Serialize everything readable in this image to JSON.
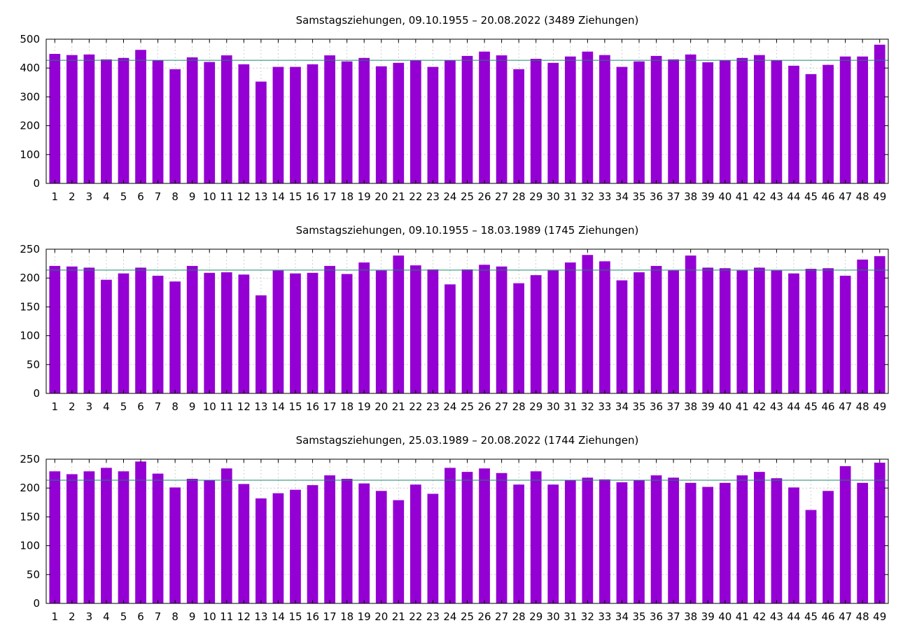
{
  "chart_data": [
    {
      "type": "bar",
      "title": "Samstagsziehungen, 09.10.1955 – 20.08.2022 (3489 Ziehungen)",
      "xlabel": "",
      "ylabel": "",
      "ylim": [
        0,
        500
      ],
      "yticks": [
        0,
        100,
        200,
        300,
        400,
        500
      ],
      "grid": true,
      "bar_color": "#9400d3",
      "reference_line": {
        "value": 427,
        "color": "#1a8a6e"
      },
      "categories": [
        "1",
        "2",
        "3",
        "4",
        "5",
        "6",
        "7",
        "8",
        "9",
        "10",
        "11",
        "12",
        "13",
        "14",
        "15",
        "16",
        "17",
        "18",
        "19",
        "20",
        "21",
        "22",
        "23",
        "24",
        "25",
        "26",
        "27",
        "28",
        "29",
        "30",
        "31",
        "32",
        "33",
        "34",
        "35",
        "36",
        "37",
        "38",
        "39",
        "40",
        "41",
        "42",
        "43",
        "44",
        "45",
        "46",
        "47",
        "48",
        "49"
      ],
      "values": [
        449,
        445,
        447,
        430,
        435,
        463,
        427,
        396,
        437,
        421,
        444,
        413,
        353,
        404,
        404,
        413,
        444,
        423,
        435,
        406,
        418,
        427,
        404,
        427,
        442,
        457,
        444,
        396,
        432,
        418,
        440,
        457,
        445,
        404,
        423,
        442,
        430,
        447,
        420,
        427,
        435,
        445,
        427,
        408,
        379,
        411,
        440,
        440,
        481
      ]
    },
    {
      "type": "bar",
      "title": "Samstagsziehungen, 09.10.1955 – 18.03.1989 (1745 Ziehungen)",
      "xlabel": "",
      "ylabel": "",
      "ylim": [
        0,
        250
      ],
      "yticks": [
        0,
        50,
        100,
        150,
        200,
        250
      ],
      "grid": true,
      "bar_color": "#9400d3",
      "reference_line": {
        "value": 213.7,
        "color": "#1a8a6e"
      },
      "categories": [
        "1",
        "2",
        "3",
        "4",
        "5",
        "6",
        "7",
        "8",
        "9",
        "10",
        "11",
        "12",
        "13",
        "14",
        "15",
        "16",
        "17",
        "18",
        "19",
        "20",
        "21",
        "22",
        "23",
        "24",
        "25",
        "26",
        "27",
        "28",
        "29",
        "30",
        "31",
        "32",
        "33",
        "34",
        "35",
        "36",
        "37",
        "38",
        "39",
        "40",
        "41",
        "42",
        "43",
        "44",
        "45",
        "46",
        "47",
        "48",
        "49"
      ],
      "values": [
        221,
        220,
        218,
        197,
        208,
        218,
        204,
        194,
        221,
        209,
        210,
        206,
        170,
        213,
        208,
        209,
        221,
        207,
        227,
        213,
        239,
        222,
        215,
        189,
        215,
        223,
        220,
        191,
        205,
        213,
        227,
        240,
        229,
        196,
        210,
        221,
        213,
        239,
        218,
        217,
        213,
        218,
        213,
        208,
        216,
        217,
        204,
        232,
        238
      ]
    },
    {
      "type": "bar",
      "title": "Samstagsziehungen, 25.03.1989 – 20.08.2022 (1744 Ziehungen)",
      "xlabel": "",
      "ylabel": "",
      "ylim": [
        0,
        250
      ],
      "yticks": [
        0,
        50,
        100,
        150,
        200,
        250
      ],
      "grid": true,
      "bar_color": "#9400d3",
      "reference_line": {
        "value": 213.6,
        "color": "#1a8a6e"
      },
      "categories": [
        "1",
        "2",
        "3",
        "4",
        "5",
        "6",
        "7",
        "8",
        "9",
        "10",
        "11",
        "12",
        "13",
        "14",
        "15",
        "16",
        "17",
        "18",
        "19",
        "20",
        "21",
        "22",
        "23",
        "24",
        "25",
        "26",
        "27",
        "28",
        "29",
        "30",
        "31",
        "32",
        "33",
        "34",
        "35",
        "36",
        "37",
        "38",
        "39",
        "40",
        "41",
        "42",
        "43",
        "44",
        "45",
        "46",
        "47",
        "48",
        "49"
      ],
      "values": [
        229,
        224,
        229,
        235,
        229,
        246,
        225,
        201,
        216,
        213,
        234,
        207,
        182,
        191,
        197,
        205,
        222,
        216,
        208,
        195,
        179,
        206,
        190,
        235,
        228,
        234,
        226,
        206,
        229,
        206,
        213,
        218,
        215,
        210,
        213,
        222,
        218,
        209,
        202,
        209,
        222,
        228,
        217,
        201,
        162,
        195,
        238,
        209,
        244
      ]
    }
  ]
}
